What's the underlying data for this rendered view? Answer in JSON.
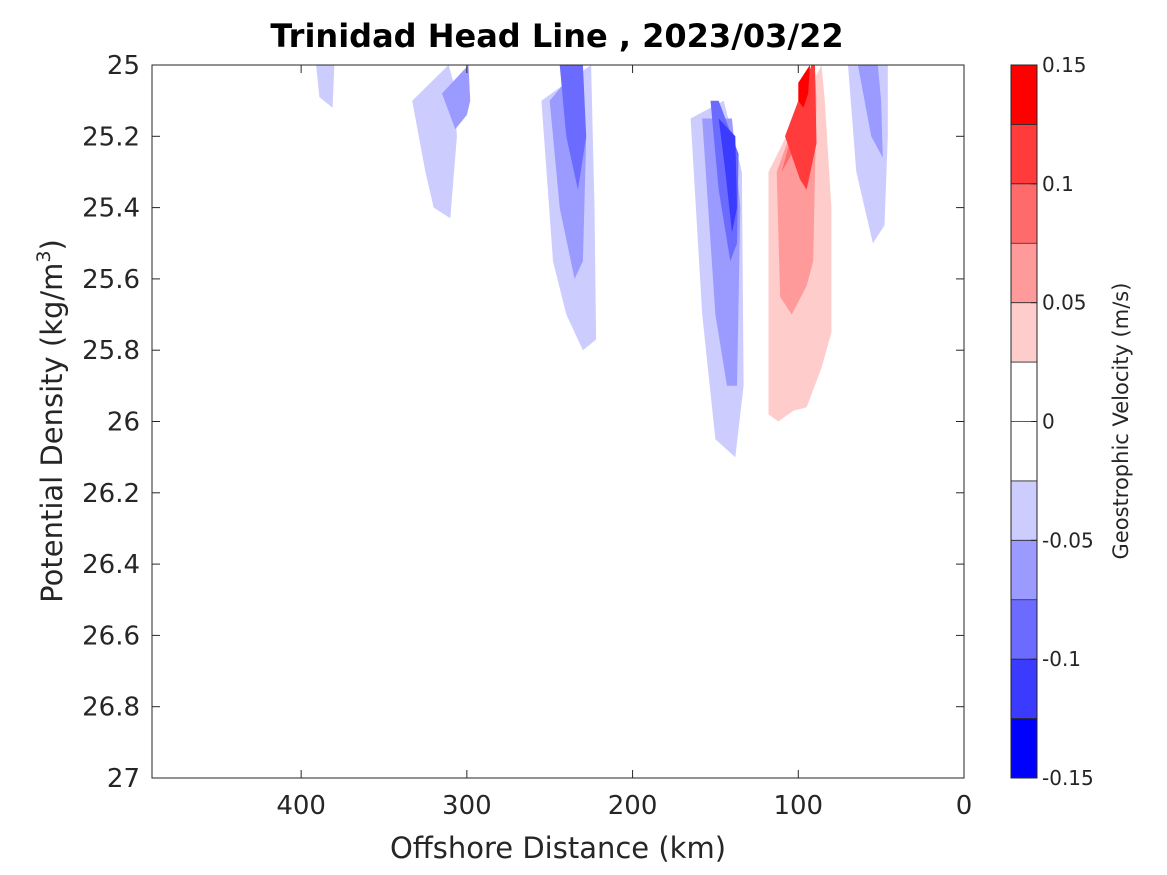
{
  "chart_data": {
    "type": "contour",
    "title": "Trinidad Head Line , 2023/03/22",
    "xlabel": "Offshore Distance (km)",
    "ylabel": "Potential Density (kg/m",
    "ylabel_superscript": "3",
    "ylabel_close": ")",
    "xlim": [
      490,
      0
    ],
    "x_reversed": true,
    "ylim": [
      25,
      27
    ],
    "y_reversed": true,
    "x_ticks": [
      400,
      300,
      200,
      100,
      0
    ],
    "x_tick_labels": [
      "400",
      "300",
      "200",
      "100",
      "0"
    ],
    "y_ticks": [
      25,
      25.2,
      25.4,
      25.6,
      25.8,
      26,
      26.2,
      26.4,
      26.6,
      26.8,
      27
    ],
    "y_tick_labels": [
      "25",
      "25.2",
      "25.4",
      "25.6",
      "25.8",
      "26",
      "26.2",
      "26.4",
      "26.6",
      "26.8",
      "27"
    ],
    "grid": false,
    "colorbar": {
      "label": "Geostrophic Velocity (m/s)",
      "range": [
        -0.15,
        0.15
      ],
      "level_step": 0.025,
      "tick_values": [
        0.15,
        0.1,
        0.05,
        0,
        -0.05,
        -0.1,
        -0.15
      ],
      "tick_labels": [
        "0.15",
        "0.1",
        "0.05",
        "0",
        "-0.05",
        "-0.1",
        "-0.15"
      ],
      "colors_top_to_bottom": [
        "#ff0000",
        "#ff3b3b",
        "#ff6b6b",
        "#ff9a9a",
        "#ffcccc",
        "#ffffff",
        "#ffffff",
        "#ccccff",
        "#9a9aff",
        "#6b6bff",
        "#3b3bff",
        "#0000ff"
      ]
    },
    "regions": [
      {
        "name": "neg-390-l1",
        "level": -1,
        "pts": [
          [
            399,
            25
          ],
          [
            387,
            25.45
          ],
          [
            380,
            25.61
          ],
          [
            375,
            25.4
          ],
          [
            373,
            25.15
          ],
          [
            368,
            25
          ]
        ]
      },
      {
        "name": "neg-390-l2",
        "level": -2,
        "pts": [
          [
            391,
            25
          ],
          [
            389,
            25.09
          ],
          [
            381,
            25.12
          ],
          [
            380,
            25
          ]
        ]
      },
      {
        "name": "neg-320-l1",
        "level": -1,
        "pts": [
          [
            345,
            25.1
          ],
          [
            338,
            25.5
          ],
          [
            336,
            25.74
          ],
          [
            325,
            25.78
          ],
          [
            313,
            25.78
          ],
          [
            300,
            25.72
          ],
          [
            293,
            25.48
          ],
          [
            290,
            25.25
          ],
          [
            295,
            25.05
          ],
          [
            298,
            25
          ]
        ]
      },
      {
        "name": "neg-320-l2",
        "level": -2,
        "pts": [
          [
            333,
            25.1
          ],
          [
            325,
            25.3
          ],
          [
            320,
            25.4
          ],
          [
            310,
            25.43
          ],
          [
            306,
            25.2
          ],
          [
            308,
            25.05
          ],
          [
            311,
            25
          ]
        ]
      },
      {
        "name": "neg-320-l3",
        "level": -3,
        "pts": [
          [
            315,
            25.08
          ],
          [
            307,
            25.18
          ],
          [
            300,
            25.14
          ],
          [
            298,
            25.1
          ],
          [
            299,
            25
          ]
        ]
      },
      {
        "name": "neg-235-l1",
        "level": -1,
        "pts": [
          [
            258,
            25.1
          ],
          [
            257,
            25.6
          ],
          [
            255,
            25.85
          ],
          [
            240,
            26
          ],
          [
            220,
            26.02
          ],
          [
            219,
            25.5
          ],
          [
            218,
            25.2
          ],
          [
            220,
            25
          ]
        ]
      },
      {
        "name": "neg-235-l2",
        "level": -2,
        "pts": [
          [
            255,
            25.1
          ],
          [
            248,
            25.55
          ],
          [
            240,
            25.7
          ],
          [
            230,
            25.8
          ],
          [
            222,
            25.77
          ],
          [
            223,
            25.4
          ],
          [
            225,
            25
          ]
        ]
      },
      {
        "name": "neg-235-l3",
        "level": -3,
        "pts": [
          [
            250,
            25.1
          ],
          [
            244,
            25.4
          ],
          [
            235,
            25.6
          ],
          [
            230,
            25.55
          ],
          [
            228,
            25.2
          ],
          [
            232,
            25
          ]
        ]
      },
      {
        "name": "neg-235-l4",
        "level": -4,
        "pts": [
          [
            244,
            25
          ],
          [
            240,
            25.2
          ],
          [
            233,
            25.35
          ],
          [
            228,
            25.2
          ],
          [
            230,
            25
          ]
        ]
      },
      {
        "name": "neg-140-l1",
        "level": -1,
        "pts": [
          [
            182,
            25.1
          ],
          [
            175,
            25.5
          ],
          [
            160,
            25.85
          ],
          [
            152,
            26.2
          ],
          [
            145,
            26.26
          ],
          [
            130,
            26.17
          ],
          [
            130,
            25.4
          ],
          [
            125,
            25.2
          ],
          [
            150,
            25.1
          ]
        ]
      },
      {
        "name": "neg-140-l2",
        "level": -2,
        "pts": [
          [
            165,
            25.15
          ],
          [
            158,
            25.7
          ],
          [
            150,
            26.05
          ],
          [
            138,
            26.1
          ],
          [
            133,
            25.9
          ],
          [
            134,
            25.3
          ],
          [
            145,
            25.1
          ]
        ]
      },
      {
        "name": "neg-140-l3",
        "level": -3,
        "pts": [
          [
            158,
            25.15
          ],
          [
            150,
            25.7
          ],
          [
            143,
            25.9
          ],
          [
            137,
            25.9
          ],
          [
            135,
            25.4
          ],
          [
            140,
            25.15
          ]
        ]
      },
      {
        "name": "neg-140-l4",
        "level": -4,
        "pts": [
          [
            153,
            25.1
          ],
          [
            148,
            25.35
          ],
          [
            141,
            25.55
          ],
          [
            137,
            25.5
          ],
          [
            136,
            25.25
          ],
          [
            148,
            25.1
          ]
        ]
      },
      {
        "name": "neg-140-l5",
        "level": -5,
        "pts": [
          [
            148,
            25.15
          ],
          [
            144,
            25.3
          ],
          [
            140,
            25.47
          ],
          [
            137,
            25.4
          ],
          [
            138,
            25.2
          ]
        ]
      },
      {
        "name": "neg-50-l1",
        "level": -1,
        "pts": [
          [
            78,
            25
          ],
          [
            75,
            25.3
          ],
          [
            68,
            25.6
          ],
          [
            59,
            25.8
          ],
          [
            51,
            25.82
          ],
          [
            46,
            25.58
          ],
          [
            40,
            25.3
          ],
          [
            39,
            25
          ]
        ]
      },
      {
        "name": "neg-50-l2",
        "level": -2,
        "pts": [
          [
            70,
            25
          ],
          [
            65,
            25.3
          ],
          [
            55,
            25.5
          ],
          [
            48,
            25.45
          ],
          [
            46,
            25.2
          ],
          [
            46,
            25
          ]
        ]
      },
      {
        "name": "neg-50-l3",
        "level": -3,
        "pts": [
          [
            64,
            25
          ],
          [
            56,
            25.2
          ],
          [
            49,
            25.26
          ],
          [
            50,
            25.1
          ],
          [
            52,
            25
          ]
        ]
      },
      {
        "name": "neg-110-bottom",
        "level": -1,
        "pts": [
          [
            120,
            27
          ],
          [
            115,
            26.85
          ],
          [
            103,
            26.75
          ],
          [
            90,
            26.72
          ],
          [
            80,
            26.8
          ],
          [
            70,
            26.9
          ],
          [
            90,
            26.9
          ],
          [
            92,
            27
          ]
        ]
      },
      {
        "name": "neg-350-sliver",
        "level": -1,
        "pts": [
          [
            352,
            26.28
          ],
          [
            349,
            26.35
          ],
          [
            349,
            26.48
          ],
          [
            351,
            26.5
          ],
          [
            353,
            26.4
          ]
        ]
      },
      {
        "name": "pos-100-l1",
        "level": 1,
        "pts": [
          [
            79,
            25
          ],
          [
            77,
            25.4
          ],
          [
            76,
            25.9
          ],
          [
            70,
            26.1
          ],
          [
            67,
            26.2
          ],
          [
            63,
            26.2
          ],
          [
            60,
            26.2
          ],
          [
            58,
            25.7
          ],
          [
            60,
            25.5
          ],
          [
            65,
            25.3
          ],
          [
            76,
            25.1
          ],
          [
            78,
            25
          ]
        ]
      },
      {
        "name": "pos-100-l1b",
        "level": 1,
        "pts": [
          [
            118,
            25.3
          ],
          [
            118,
            26.1
          ],
          [
            114,
            26.25
          ],
          [
            109,
            26.3
          ],
          [
            104,
            26.28
          ],
          [
            98,
            26.22
          ],
          [
            93,
            26.15
          ],
          [
            84,
            26.05
          ],
          [
            80,
            25.95
          ],
          [
            80,
            25.4
          ],
          [
            82,
            25.1
          ],
          [
            81,
            25
          ],
          [
            96,
            25
          ],
          [
            100,
            25.1
          ],
          [
            105,
            25.2
          ]
        ]
      },
      {
        "name": "pos-100-l2",
        "level": 2,
        "pts": [
          [
            118,
            25.3
          ],
          [
            118,
            25.98
          ],
          [
            112,
            26.0
          ],
          [
            103,
            25.97
          ],
          [
            95,
            25.96
          ],
          [
            86,
            25.85
          ],
          [
            80,
            25.75
          ],
          [
            80,
            25.4
          ],
          [
            84,
            25.1
          ],
          [
            86,
            25
          ]
        ]
      },
      {
        "name": "pos-100-l3",
        "level": 3,
        "pts": [
          [
            113,
            25.3
          ],
          [
            111,
            25.65
          ],
          [
            104,
            25.7
          ],
          [
            95,
            25.62
          ],
          [
            91,
            25.55
          ],
          [
            89,
            25.1
          ],
          [
            90,
            25
          ]
        ]
      },
      {
        "name": "pos-100-l4",
        "level": 4,
        "pts": [
          [
            110,
            25.3
          ],
          [
            104,
            25.25
          ],
          [
            98,
            25.33
          ],
          [
            94,
            25.3
          ],
          [
            93,
            25.1
          ],
          [
            93,
            25
          ]
        ]
      },
      {
        "name": "pos-100-l5",
        "level": 5,
        "pts": [
          [
            108,
            25.2
          ],
          [
            99,
            25.32
          ],
          [
            95,
            25.35
          ],
          [
            89,
            25.22
          ],
          [
            90,
            25
          ],
          [
            92,
            25
          ],
          [
            100,
            25.1
          ]
        ]
      },
      {
        "name": "pos-100-l6",
        "level": 6,
        "pts": [
          [
            100,
            25.05
          ],
          [
            100,
            25.1
          ],
          [
            97,
            25.12
          ],
          [
            94,
            25.08
          ],
          [
            93,
            25
          ]
        ]
      },
      {
        "name": "pos-360-speck",
        "level": 1,
        "pts": [
          [
            363,
            25
          ],
          [
            355,
            25.1
          ],
          [
            358,
            25.1
          ],
          [
            362,
            25.12
          ],
          [
            365,
            25.05
          ]
        ]
      },
      {
        "name": "pos-420-speck",
        "level": 1,
        "pts": [
          [
            419,
            25
          ],
          [
            418,
            25.05
          ],
          [
            420,
            25.05
          ]
        ]
      },
      {
        "name": "pos-200-sliver",
        "level": 1,
        "pts": [
          [
            200,
            25.1
          ],
          [
            198,
            25.3
          ],
          [
            199,
            25.55
          ],
          [
            201,
            25.5
          ],
          [
            202,
            25.25
          ]
        ]
      },
      {
        "name": "pos-390-mid",
        "level": 1,
        "pts": [
          [
            390,
            26.35
          ],
          [
            382,
            26.4
          ],
          [
            378,
            26.55
          ],
          [
            381,
            26.67
          ],
          [
            386,
            26.7
          ],
          [
            392,
            26.7
          ],
          [
            393,
            26.5
          ]
        ]
      },
      {
        "name": "pos-320-bottom",
        "level": 1,
        "pts": [
          [
            348,
            26.9
          ],
          [
            340,
            26.85
          ],
          [
            330,
            26.8
          ],
          [
            320,
            26.7
          ],
          [
            310,
            26.64
          ],
          [
            300,
            26.7
          ],
          [
            295,
            26.9
          ]
        ]
      },
      {
        "name": "pos-240-bottom",
        "level": 1,
        "pts": [
          [
            250,
            26.9
          ],
          [
            247,
            26.8
          ],
          [
            235,
            26.7
          ],
          [
            228,
            26.6
          ],
          [
            225,
            26.9
          ]
        ]
      },
      {
        "name": "pos-145-bottom",
        "level": 1,
        "pts": [
          [
            155,
            27
          ],
          [
            153,
            26.8
          ],
          [
            145,
            26.75
          ],
          [
            137,
            26.7
          ],
          [
            135,
            26.9
          ],
          [
            133,
            27
          ]
        ]
      },
      {
        "name": "pos-55-mid",
        "level": 1,
        "pts": [
          [
            63,
            26.38
          ],
          [
            60,
            26.48
          ],
          [
            57,
            26.55
          ],
          [
            59,
            26.62
          ],
          [
            62,
            26.63
          ],
          [
            64,
            26.5
          ]
        ]
      },
      {
        "name": "pos-40-mid",
        "level": 1,
        "pts": [
          [
            39,
            26.2
          ],
          [
            36,
            26.3
          ],
          [
            36,
            26.45
          ],
          [
            38,
            26.5
          ],
          [
            41,
            26.4
          ]
        ]
      }
    ]
  }
}
